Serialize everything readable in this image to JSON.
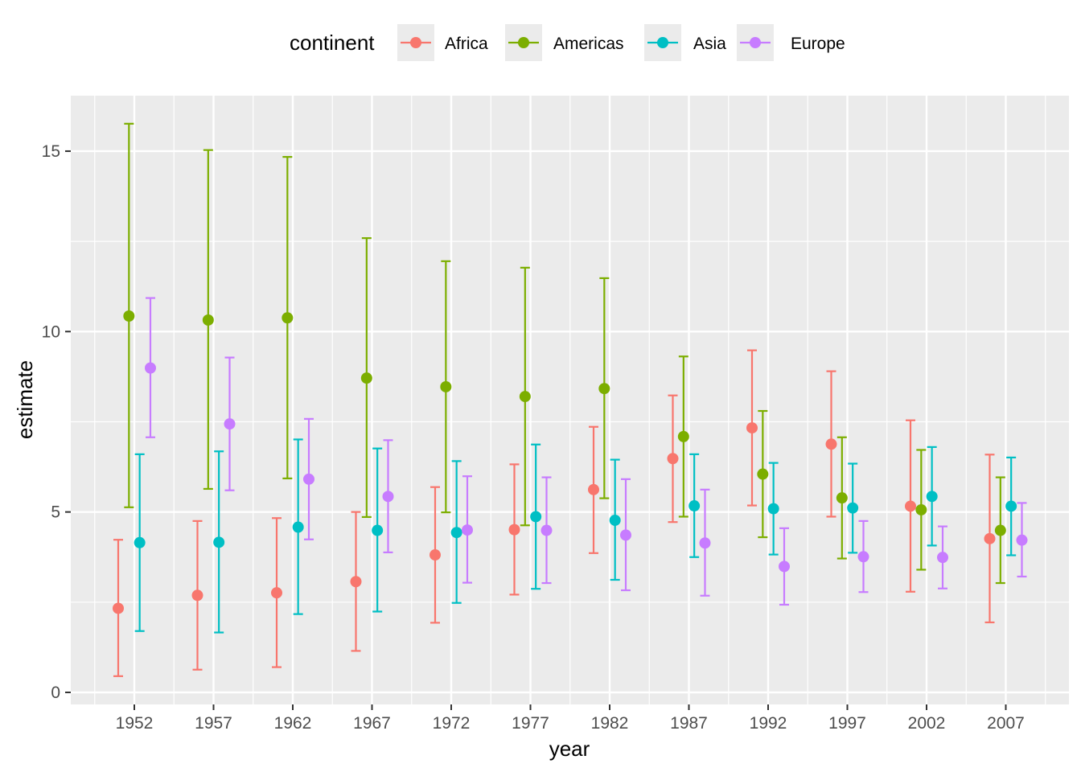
{
  "chart_data": {
    "type": "scatter",
    "subtype": "point-with-errorbars",
    "xlabel": "year",
    "ylabel": "estimate",
    "x": [
      "1952",
      "1957",
      "1962",
      "1967",
      "1972",
      "1977",
      "1982",
      "1987",
      "1992",
      "1997",
      "2002",
      "2007"
    ],
    "y_ticks": [
      0,
      5,
      10,
      15
    ],
    "ylim": [
      -0.3,
      16.5
    ],
    "grid": true,
    "legend": {
      "title": "continent",
      "position": "top"
    },
    "series": [
      {
        "name": "Africa",
        "color": "#F8766D",
        "estimate": [
          2.33,
          2.69,
          2.76,
          3.07,
          3.81,
          4.51,
          5.62,
          6.48,
          7.33,
          6.88,
          5.16,
          4.26
        ],
        "lower": [
          0.45,
          0.63,
          0.7,
          1.15,
          1.93,
          2.71,
          3.86,
          4.72,
          5.18,
          4.87,
          2.79,
          1.94
        ],
        "upper": [
          4.23,
          4.75,
          4.83,
          5.0,
          5.69,
          6.32,
          7.36,
          8.23,
          9.48,
          8.9,
          7.54,
          6.59
        ]
      },
      {
        "name": "Americas",
        "color": "#7CAE00",
        "estimate": [
          10.43,
          10.32,
          10.38,
          8.71,
          8.47,
          8.2,
          8.42,
          7.09,
          6.05,
          5.39,
          5.06,
          4.49
        ],
        "lower": [
          5.13,
          5.64,
          5.93,
          4.86,
          4.99,
          4.63,
          5.38,
          4.87,
          4.3,
          3.71,
          3.4,
          3.03
        ],
        "upper": [
          15.76,
          15.03,
          14.84,
          12.59,
          11.95,
          11.77,
          11.48,
          9.31,
          7.8,
          7.07,
          6.72,
          5.96
        ]
      },
      {
        "name": "Asia",
        "color": "#00BFC4",
        "estimate": [
          4.15,
          4.16,
          4.58,
          4.49,
          4.43,
          4.87,
          4.77,
          5.17,
          5.09,
          5.11,
          5.43,
          5.16
        ],
        "lower": [
          1.7,
          1.66,
          2.17,
          2.24,
          2.48,
          2.87,
          3.12,
          3.75,
          3.82,
          3.87,
          4.07,
          3.8
        ],
        "upper": [
          6.6,
          6.68,
          7.01,
          6.76,
          6.41,
          6.87,
          6.45,
          6.6,
          6.36,
          6.34,
          6.8,
          6.51
        ]
      },
      {
        "name": "Europe",
        "color": "#C77CFF",
        "estimate": [
          8.99,
          7.44,
          5.91,
          5.43,
          4.5,
          4.49,
          4.36,
          4.14,
          3.49,
          3.76,
          3.74,
          4.22
        ],
        "lower": [
          7.07,
          5.6,
          4.24,
          3.88,
          3.04,
          3.03,
          2.83,
          2.68,
          2.43,
          2.78,
          2.88,
          3.21
        ],
        "upper": [
          10.93,
          9.28,
          7.58,
          6.99,
          5.99,
          5.96,
          5.91,
          5.62,
          4.55,
          4.75,
          4.6,
          5.25
        ]
      }
    ]
  }
}
